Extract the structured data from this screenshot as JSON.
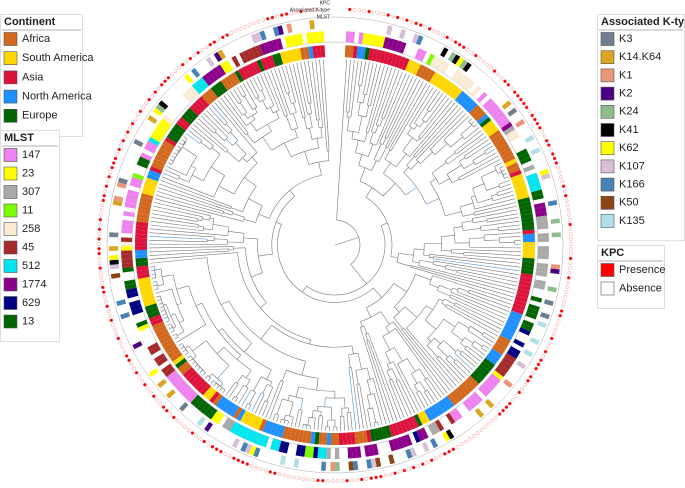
{
  "ring_labels": [
    "KPC",
    "Associated K-type",
    "MLST"
  ],
  "legends": [
    {
      "title": "Continent",
      "items": [
        {
          "label": "Africa",
          "color": "#d2691e"
        },
        {
          "label": "South America",
          "color": "#ffd700"
        },
        {
          "label": "Asia",
          "color": "#dc143c"
        },
        {
          "label": "North America",
          "color": "#1e90ff"
        },
        {
          "label": "Europe",
          "color": "#006400"
        }
      ]
    },
    {
      "title": "MLST",
      "items": [
        {
          "label": "147",
          "color": "#ee82ee"
        },
        {
          "label": "23",
          "color": "#ffff00"
        },
        {
          "label": "307",
          "color": "#a9a9a9"
        },
        {
          "label": "11",
          "color": "#7cfc00"
        },
        {
          "label": "258",
          "color": "#faebd7"
        },
        {
          "label": "45",
          "color": "#a52a2a"
        },
        {
          "label": "512",
          "color": "#00e5ee"
        },
        {
          "label": "1774",
          "color": "#8b008b"
        },
        {
          "label": "629",
          "color": "#000080"
        },
        {
          "label": "13",
          "color": "#006400"
        }
      ]
    },
    {
      "title": "Associated K-type",
      "items": [
        {
          "label": "K3",
          "color": "#708090"
        },
        {
          "label": "K14.K64",
          "color": "#daa520"
        },
        {
          "label": "K1",
          "color": "#e9967a"
        },
        {
          "label": "K2",
          "color": "#4b0082"
        },
        {
          "label": "K24",
          "color": "#8fbc8f"
        },
        {
          "label": "K41",
          "color": "#000000"
        },
        {
          "label": "K62",
          "color": "#ffff00"
        },
        {
          "label": "K107",
          "color": "#d8bfd8"
        },
        {
          "label": "K166",
          "color": "#4682b4"
        },
        {
          "label": "K50",
          "color": "#8b4513"
        },
        {
          "label": "K135",
          "color": "#b0e0e6"
        }
      ]
    },
    {
      "title": "KPC",
      "items": [
        {
          "label": "Presence",
          "color": "#ff0000"
        },
        {
          "label": "Absence",
          "color": "#ffffff"
        }
      ]
    }
  ]
}
